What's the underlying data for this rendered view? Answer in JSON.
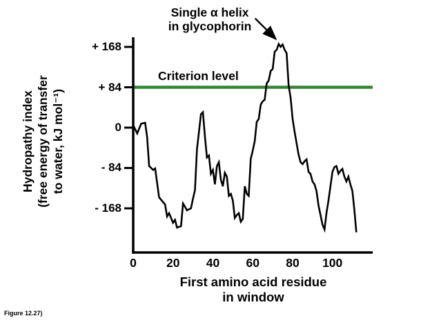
{
  "figure_caption": "Figure 12.27)",
  "colors": {
    "background": "#ffffff",
    "text": "#000000",
    "curve": "#000000",
    "criterion_line": "#358535"
  },
  "chart_data": {
    "type": "line",
    "title": "",
    "y_axis_title": "Hydropathy index (free energy of transfer to water, kJ mol⁻¹)",
    "y_axis_title_lines": "Hydropathy index\n(free energy of transfer\nto water, kJ mol⁻¹)",
    "x_axis_title": "First amino acid residue in window",
    "x_axis_title_lines": "First amino acid residue\nin window",
    "criterion_label": "Criterion level",
    "criterion_level": 84,
    "annotation": {
      "text": "Single α helix in glycophorin",
      "text_lines": "Single α helix\nin glycophorin",
      "target": [
        74,
        170
      ]
    },
    "x_ticks": [
      0,
      20,
      40,
      60,
      80,
      100
    ],
    "y_ticks": [
      168,
      84,
      0,
      -84,
      -168
    ],
    "y_tick_labels": [
      "+ 168",
      "+ 84",
      "0",
      "- 84",
      "- 168"
    ],
    "x_range_shown": [
      0,
      115
    ],
    "ylim": [
      -260,
      190
    ],
    "grid": false,
    "legend": false,
    "y_units": "kJ mol⁻¹",
    "series": [
      {
        "name": "Glycophorin hydropathy index",
        "color": "#000000",
        "points": [
          [
            0,
            5
          ],
          [
            2,
            -12
          ],
          [
            4,
            8
          ],
          [
            6,
            10
          ],
          [
            7,
            -20
          ],
          [
            8,
            -80
          ],
          [
            10,
            -88
          ],
          [
            11,
            -85
          ],
          [
            13,
            -145
          ],
          [
            14,
            -150
          ],
          [
            16,
            -160
          ],
          [
            17,
            -185
          ],
          [
            18,
            -178
          ],
          [
            20,
            -198
          ],
          [
            21,
            -192
          ],
          [
            22,
            -208
          ],
          [
            24,
            -205
          ],
          [
            25,
            -158
          ],
          [
            27,
            -172
          ],
          [
            29,
            -168
          ],
          [
            30,
            -148
          ],
          [
            31,
            -130
          ],
          [
            32,
            -45
          ],
          [
            34,
            28
          ],
          [
            35,
            32
          ],
          [
            36,
            -18
          ],
          [
            37,
            -62
          ],
          [
            38,
            -58
          ],
          [
            39,
            -96
          ],
          [
            40,
            -88
          ],
          [
            41,
            -118
          ],
          [
            42,
            -80
          ],
          [
            43,
            -72
          ],
          [
            44,
            -108
          ],
          [
            45,
            -122
          ],
          [
            46,
            -94
          ],
          [
            47,
            -102
          ],
          [
            48,
            -142
          ],
          [
            49,
            -138
          ],
          [
            50,
            -152
          ],
          [
            51,
            -188
          ],
          [
            52,
            -182
          ],
          [
            53,
            -178
          ],
          [
            54,
            -196
          ],
          [
            55,
            -190
          ],
          [
            56,
            -122
          ],
          [
            57,
            -138
          ],
          [
            58,
            -142
          ],
          [
            59,
            -65
          ],
          [
            60,
            -48
          ],
          [
            61,
            -28
          ],
          [
            62,
            12
          ],
          [
            63,
            18
          ],
          [
            64,
            48
          ],
          [
            65,
            55
          ],
          [
            66,
            58
          ],
          [
            67,
            92
          ],
          [
            68,
            98
          ],
          [
            69,
            118
          ],
          [
            70,
            122
          ],
          [
            71,
            158
          ],
          [
            72,
            162
          ],
          [
            73,
            174
          ],
          [
            74,
            168
          ],
          [
            75,
            173
          ],
          [
            76,
            162
          ],
          [
            77,
            155
          ],
          [
            78,
            88
          ],
          [
            79,
            62
          ],
          [
            80,
            18
          ],
          [
            81,
            -8
          ],
          [
            82,
            -32
          ],
          [
            83,
            -56
          ],
          [
            84,
            -72
          ],
          [
            85,
            -76
          ],
          [
            86,
            -70
          ],
          [
            87,
            -66
          ],
          [
            88,
            -92
          ],
          [
            89,
            -96
          ],
          [
            90,
            -112
          ],
          [
            91,
            -118
          ],
          [
            92,
            -132
          ],
          [
            93,
            -162
          ],
          [
            94,
            -182
          ],
          [
            95,
            -202
          ],
          [
            96,
            -212
          ],
          [
            97,
            -178
          ],
          [
            98,
            -152
          ],
          [
            99,
            -122
          ],
          [
            100,
            -92
          ],
          [
            101,
            -82
          ],
          [
            102,
            -80
          ],
          [
            103,
            -96
          ],
          [
            104,
            -90
          ],
          [
            105,
            -86
          ],
          [
            106,
            -102
          ],
          [
            107,
            -112
          ],
          [
            108,
            -102
          ],
          [
            109,
            -118
          ],
          [
            110,
            -132
          ],
          [
            111,
            -172
          ],
          [
            112,
            -218
          ]
        ]
      }
    ]
  }
}
